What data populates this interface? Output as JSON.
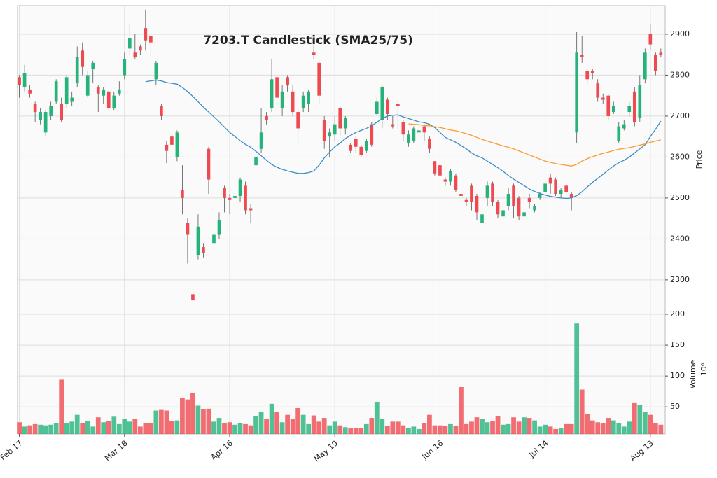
{
  "chart_data": {
    "type": "candlestick",
    "title": "7203.T Candlestick (SMA25/75)",
    "y_label": "Price",
    "volume_label": "Volume",
    "volume_scale_label": "10⁶",
    "up_color": "#26b37a",
    "down_color": "#ef4a50",
    "categories": [
      "Feb 17",
      null,
      null,
      null,
      null,
      null,
      null,
      null,
      null,
      null,
      null,
      null,
      null,
      null,
      null,
      null,
      null,
      null,
      null,
      null,
      "Mar 18",
      null,
      null,
      null,
      null,
      null,
      null,
      null,
      null,
      null,
      null,
      null,
      null,
      null,
      null,
      null,
      null,
      null,
      null,
      null,
      "Apr 16",
      null,
      null,
      null,
      null,
      null,
      null,
      null,
      null,
      null,
      null,
      null,
      null,
      null,
      null,
      null,
      null,
      null,
      null,
      null,
      "May 19",
      null,
      null,
      null,
      null,
      null,
      null,
      null,
      null,
      null,
      null,
      null,
      null,
      null,
      null,
      null,
      null,
      null,
      null,
      null,
      "Jun 16",
      null,
      null,
      null,
      null,
      null,
      null,
      null,
      null,
      null,
      null,
      null,
      null,
      null,
      null,
      null,
      null,
      null,
      null,
      null,
      "Jul 14",
      null,
      null,
      null,
      null,
      null,
      null,
      null,
      null,
      null,
      null,
      null,
      null,
      null,
      null,
      null,
      null,
      null,
      null,
      null,
      "Aug 13",
      null,
      null
    ],
    "open": [
      2795,
      2770,
      2765,
      2730,
      2690,
      2660,
      2700,
      2735,
      2730,
      2730,
      2735,
      2780,
      2860,
      2750,
      2815,
      2770,
      2750,
      2760,
      2720,
      2755,
      2800,
      2865,
      2855,
      2870,
      2915,
      2895,
      2790,
      2725,
      2630,
      2650,
      2600,
      2520,
      2440,
      2265,
      2360,
      2380,
      2620,
      2390,
      2410,
      2525,
      2500,
      2500,
      2505,
      2530,
      2475,
      2580,
      2620,
      2700,
      2720,
      2795,
      2720,
      2795,
      2760,
      2710,
      2720,
      2730,
      2855,
      2830,
      2690,
      2650,
      2655,
      2720,
      2670,
      2630,
      2645,
      2625,
      2615,
      2680,
      2705,
      2690,
      2740,
      2680,
      2730,
      2685,
      2635,
      2640,
      2660,
      2675,
      2645,
      2590,
      2580,
      2545,
      2540,
      2555,
      2510,
      2495,
      2530,
      2505,
      2440,
      2500,
      2535,
      2490,
      2455,
      2480,
      2530,
      2500,
      2455,
      2500,
      2470,
      2500,
      2515,
      2550,
      2545,
      2510,
      2530,
      2510,
      2660,
      2850,
      2810,
      2810,
      2780,
      2745,
      2750,
      2710,
      2640,
      2670,
      2710,
      2760,
      2695,
      2790,
      2900,
      2850,
      2855
    ],
    "high": [
      2800,
      2825,
      2775,
      2735,
      2720,
      2715,
      2735,
      2790,
      2745,
      2800,
      2760,
      2870,
      2880,
      2810,
      2835,
      2775,
      2770,
      2765,
      2760,
      2785,
      2855,
      2925,
      2900,
      2875,
      2960,
      2900,
      2835,
      2730,
      2640,
      2660,
      2665,
      2580,
      2450,
      2355,
      2460,
      2390,
      2625,
      2420,
      2465,
      2530,
      2510,
      2520,
      2550,
      2540,
      2485,
      2630,
      2720,
      2710,
      2840,
      2805,
      2775,
      2800,
      2775,
      2720,
      2760,
      2765,
      2875,
      2835,
      2700,
      2670,
      2700,
      2725,
      2700,
      2635,
      2650,
      2630,
      2645,
      2685,
      2745,
      2775,
      2745,
      2700,
      2735,
      2690,
      2665,
      2675,
      2670,
      2680,
      2650,
      2590,
      2585,
      2550,
      2570,
      2560,
      2515,
      2500,
      2535,
      2510,
      2465,
      2540,
      2540,
      2495,
      2480,
      2525,
      2535,
      2505,
      2470,
      2510,
      2485,
      2515,
      2540,
      2560,
      2550,
      2525,
      2535,
      2515,
      2905,
      2895,
      2815,
      2815,
      2790,
      2755,
      2755,
      2735,
      2685,
      2690,
      2735,
      2770,
      2800,
      2865,
      2925,
      2855,
      2865
    ],
    "low": [
      2745,
      2760,
      2745,
      2685,
      2680,
      2650,
      2690,
      2730,
      2685,
      2720,
      2725,
      2770,
      2800,
      2745,
      2780,
      2710,
      2730,
      2715,
      2715,
      2750,
      2790,
      2850,
      2840,
      2850,
      2860,
      2845,
      2775,
      2690,
      2585,
      2610,
      2590,
      2460,
      2340,
      2230,
      2350,
      2355,
      2510,
      2350,
      2400,
      2465,
      2460,
      2480,
      2490,
      2460,
      2440,
      2560,
      2610,
      2680,
      2710,
      2725,
      2700,
      2760,
      2700,
      2630,
      2710,
      2710,
      2840,
      2730,
      2620,
      2600,
      2640,
      2650,
      2655,
      2610,
      2610,
      2600,
      2610,
      2625,
      2700,
      2670,
      2690,
      2670,
      2670,
      2640,
      2625,
      2635,
      2655,
      2640,
      2610,
      2555,
      2550,
      2530,
      2530,
      2515,
      2500,
      2480,
      2470,
      2445,
      2435,
      2480,
      2480,
      2450,
      2445,
      2470,
      2450,
      2445,
      2450,
      2475,
      2465,
      2495,
      2505,
      2510,
      2505,
      2500,
      2505,
      2470,
      2635,
      2830,
      2780,
      2790,
      2735,
      2730,
      2690,
      2705,
      2635,
      2665,
      2700,
      2675,
      2685,
      2780,
      2860,
      2800,
      2845
    ],
    "close": [
      2775,
      2805,
      2755,
      2710,
      2710,
      2710,
      2725,
      2785,
      2690,
      2795,
      2745,
      2845,
      2820,
      2800,
      2830,
      2755,
      2765,
      2720,
      2750,
      2765,
      2840,
      2890,
      2845,
      2860,
      2885,
      2880,
      2830,
      2700,
      2615,
      2630,
      2660,
      2500,
      2410,
      2250,
      2430,
      2365,
      2545,
      2410,
      2445,
      2500,
      2495,
      2505,
      2545,
      2470,
      2470,
      2600,
      2660,
      2690,
      2790,
      2745,
      2760,
      2775,
      2710,
      2670,
      2750,
      2760,
      2850,
      2750,
      2640,
      2660,
      2680,
      2670,
      2695,
      2615,
      2625,
      2605,
      2640,
      2630,
      2735,
      2770,
      2705,
      2675,
      2725,
      2655,
      2655,
      2670,
      2665,
      2660,
      2620,
      2560,
      2555,
      2540,
      2565,
      2520,
      2505,
      2490,
      2490,
      2465,
      2460,
      2530,
      2490,
      2460,
      2470,
      2510,
      2480,
      2455,
      2465,
      2490,
      2480,
      2510,
      2535,
      2535,
      2510,
      2520,
      2515,
      2500,
      2855,
      2845,
      2790,
      2805,
      2745,
      2740,
      2700,
      2725,
      2675,
      2680,
      2725,
      2685,
      2775,
      2855,
      2875,
      2810,
      2850
    ],
    "volume": [
      25,
      18,
      20,
      22,
      21,
      20,
      21,
      23,
      94,
      24,
      26,
      37,
      24,
      27,
      18,
      33,
      25,
      27,
      34,
      22,
      30,
      26,
      30,
      18,
      24,
      24,
      44,
      45,
      44,
      27,
      28,
      65,
      62,
      73,
      52,
      46,
      47,
      26,
      32,
      23,
      25,
      21,
      24,
      22,
      20,
      35,
      42,
      31,
      55,
      42,
      25,
      37,
      30,
      48,
      37,
      22,
      36,
      26,
      32,
      20,
      26,
      20,
      17,
      15,
      16,
      15,
      22,
      32,
      58,
      30,
      19,
      26,
      26,
      20,
      16,
      18,
      14,
      24,
      37,
      20,
      20,
      19,
      22,
      19,
      82,
      22,
      26,
      33,
      30,
      25,
      27,
      35,
      21,
      22,
      33,
      26,
      33,
      32,
      28,
      18,
      21,
      18,
      14,
      15,
      22,
      22,
      185,
      78,
      38,
      28,
      25,
      24,
      32,
      28,
      24,
      18,
      26,
      56,
      53,
      42,
      37,
      23,
      21
    ],
    "lines": [
      {
        "color": "#3b8dc4",
        "values": [
          null,
          null,
          null,
          null,
          null,
          null,
          null,
          null,
          null,
          null,
          null,
          null,
          null,
          null,
          null,
          null,
          null,
          null,
          null,
          null,
          null,
          null,
          null,
          null,
          2784,
          2786,
          2788,
          2786,
          2782,
          2780,
          2778,
          2770,
          2760,
          2748,
          2735,
          2722,
          2710,
          2698,
          2686,
          2673,
          2660,
          2650,
          2640,
          2631,
          2624,
          2614,
          2603,
          2592,
          2582,
          2575,
          2570,
          2566,
          2563,
          2560,
          2560,
          2562,
          2566,
          2580,
          2598,
          2612,
          2625,
          2634,
          2645,
          2653,
          2660,
          2665,
          2670,
          2676,
          2685,
          2694,
          2700,
          2702,
          2703,
          2698,
          2694,
          2690,
          2686,
          2684,
          2680,
          2672,
          2660,
          2648,
          2642,
          2636,
          2628,
          2620,
          2610,
          2603,
          2598,
          2590,
          2582,
          2574,
          2565,
          2555,
          2546,
          2538,
          2530,
          2522,
          2516,
          2511,
          2507,
          2504,
          2502,
          2500,
          2499,
          2500,
          2506,
          2515,
          2527,
          2538,
          2548,
          2558,
          2568,
          2578,
          2586,
          2592,
          2600,
          2610,
          2620,
          2630,
          2650,
          2668,
          2688
        ]
      },
      {
        "color": "#ff9a2e",
        "values": [
          null,
          null,
          null,
          null,
          null,
          null,
          null,
          null,
          null,
          null,
          null,
          null,
          null,
          null,
          null,
          null,
          null,
          null,
          null,
          null,
          null,
          null,
          null,
          null,
          null,
          null,
          null,
          null,
          null,
          null,
          null,
          null,
          null,
          null,
          null,
          null,
          null,
          null,
          null,
          null,
          null,
          null,
          null,
          null,
          null,
          null,
          null,
          null,
          null,
          null,
          null,
          null,
          null,
          null,
          null,
          null,
          null,
          null,
          null,
          null,
          null,
          null,
          null,
          null,
          null,
          null,
          null,
          null,
          null,
          null,
          null,
          null,
          null,
          null,
          2681,
          2680,
          2679,
          2677,
          2676,
          2674,
          2672,
          2669,
          2666,
          2664,
          2661,
          2657,
          2653,
          2648,
          2643,
          2639,
          2635,
          2631,
          2627,
          2624,
          2620,
          2615,
          2610,
          2605,
          2600,
          2595,
          2590,
          2587,
          2584,
          2582,
          2580,
          2578,
          2582,
          2590,
          2596,
          2601,
          2605,
          2609,
          2612,
          2616,
          2619,
          2621,
          2623,
          2626,
          2629,
          2632,
          2636,
          2639,
          2642
        ]
      }
    ],
    "ylim": [
      2216,
      2970
    ],
    "yticks": [
      2300,
      2400,
      2500,
      2600,
      2700,
      2800,
      2900
    ],
    "volume_ylim": [
      6,
      200
    ],
    "volume_ticks": [
      50,
      100,
      150,
      200
    ],
    "grid": true
  }
}
